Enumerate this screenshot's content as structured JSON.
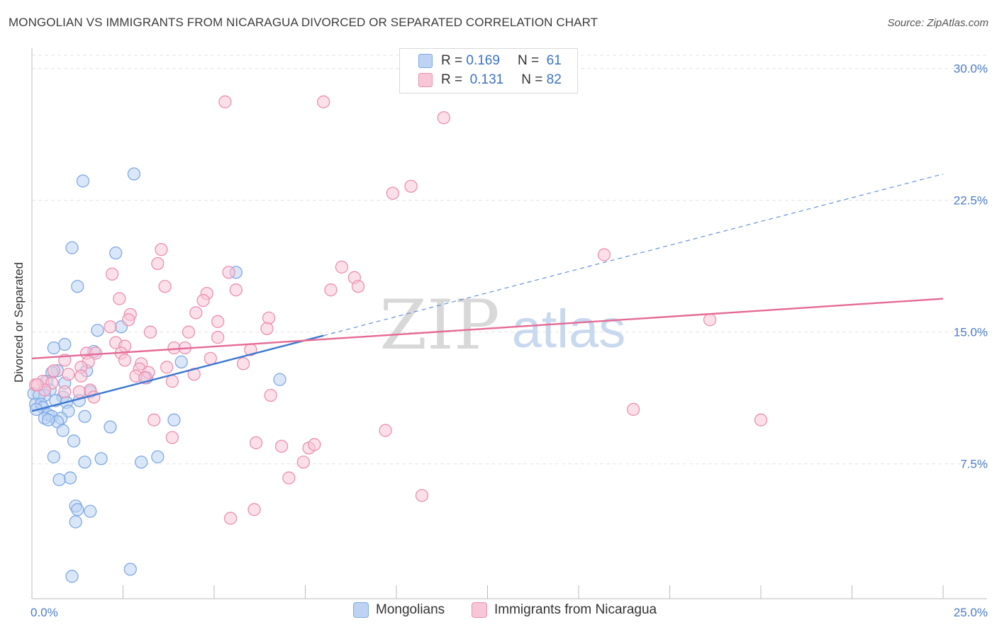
{
  "title": "MONGOLIAN VS IMMIGRANTS FROM NICARAGUA DIVORCED OR SEPARATED CORRELATION CHART",
  "source": "Source: ZipAtlas.com",
  "watermark": {
    "zip": "ZIP",
    "atlas": "atlas"
  },
  "legend": {
    "items": [
      {
        "r_label": "R =",
        "r_value": "0.169",
        "n_label": "N =",
        "n_value": "61",
        "color": "#7fa9e6",
        "fill": "#bcd3f3"
      },
      {
        "r_label": "R =",
        "r_value": "0.131",
        "n_label": "N =",
        "n_value": "82",
        "color": "#ec8fb0",
        "fill": "#f8c7d7"
      }
    ]
  },
  "bottom_legend": [
    "Mongolians",
    "Immigrants from Nicaragua"
  ],
  "chart_data": {
    "type": "scatter",
    "title": "MONGOLIAN VS IMMIGRANTS FROM NICARAGUA DIVORCED OR SEPARATED CORRELATION CHART",
    "xlabel": "",
    "ylabel": "Divorced or Separated",
    "xlim": [
      0,
      25
    ],
    "ylim": [
      0,
      30.5
    ],
    "x_ticks": [
      {
        "value": 0,
        "label": "0.0%"
      },
      {
        "value": 25,
        "label": "25.0%"
      }
    ],
    "y_ticks": [
      {
        "value": 7.5,
        "label": "7.5%"
      },
      {
        "value": 15,
        "label": "15.0%"
      },
      {
        "value": 22.5,
        "label": "22.5%"
      },
      {
        "value": 30,
        "label": "30.0%"
      }
    ],
    "grid": "horizontal dashed",
    "legend_placement": "top-center",
    "series": [
      {
        "name": "Mongolians",
        "color": "#3e78d0",
        "fill": "#bcd3f3",
        "stroke": "#7fa9e6",
        "points": [
          [
            1.4,
            23.6
          ],
          [
            2.8,
            24.0
          ],
          [
            1.1,
            19.8
          ],
          [
            2.3,
            19.5
          ],
          [
            1.25,
            17.6
          ],
          [
            5.6,
            18.4
          ],
          [
            1.8,
            15.1
          ],
          [
            2.45,
            15.3
          ],
          [
            0.9,
            14.3
          ],
          [
            0.6,
            14.1
          ],
          [
            1.7,
            13.9
          ],
          [
            4.1,
            13.3
          ],
          [
            1.5,
            12.8
          ],
          [
            0.7,
            12.8
          ],
          [
            0.55,
            12.7
          ],
          [
            3.15,
            12.4
          ],
          [
            6.8,
            12.3
          ],
          [
            0.4,
            12.2
          ],
          [
            0.9,
            12.1
          ],
          [
            0.5,
            11.7
          ],
          [
            0.05,
            11.5
          ],
          [
            1.6,
            11.6
          ],
          [
            0.35,
            11.4
          ],
          [
            0.85,
            11.3
          ],
          [
            0.2,
            11.4
          ],
          [
            0.65,
            11.1
          ],
          [
            1.3,
            11.1
          ],
          [
            0.1,
            10.9
          ],
          [
            0.95,
            11.0
          ],
          [
            0.25,
            10.9
          ],
          [
            0.3,
            10.7
          ],
          [
            0.12,
            10.6
          ],
          [
            1.0,
            10.5
          ],
          [
            0.45,
            10.3
          ],
          [
            0.55,
            10.2
          ],
          [
            0.8,
            10.1
          ],
          [
            0.35,
            10.1
          ],
          [
            0.7,
            9.9
          ],
          [
            1.45,
            10.2
          ],
          [
            0.45,
            10.0
          ],
          [
            2.15,
            9.6
          ],
          [
            0.85,
            9.4
          ],
          [
            3.9,
            10.0
          ],
          [
            1.15,
            8.8
          ],
          [
            0.6,
            7.9
          ],
          [
            1.9,
            7.8
          ],
          [
            3.45,
            7.9
          ],
          [
            1.45,
            7.6
          ],
          [
            3.0,
            7.6
          ],
          [
            1.05,
            6.7
          ],
          [
            0.75,
            6.6
          ],
          [
            1.2,
            5.1
          ],
          [
            1.25,
            4.9
          ],
          [
            1.6,
            4.8
          ],
          [
            1.2,
            4.2
          ],
          [
            2.7,
            1.5
          ],
          [
            1.1,
            1.1
          ]
        ]
      },
      {
        "name": "Immigrants from Nicaragua",
        "color": "#e56a95",
        "fill": "#f8c7d7",
        "stroke": "#ec8fb0",
        "points": [
          [
            5.3,
            28.1
          ],
          [
            8.0,
            28.1
          ],
          [
            11.3,
            27.2
          ],
          [
            10.4,
            23.3
          ],
          [
            9.9,
            22.9
          ],
          [
            15.7,
            19.4
          ],
          [
            3.55,
            19.7
          ],
          [
            3.45,
            18.9
          ],
          [
            8.5,
            18.7
          ],
          [
            5.4,
            18.4
          ],
          [
            2.2,
            18.3
          ],
          [
            8.85,
            18.1
          ],
          [
            3.65,
            17.6
          ],
          [
            8.95,
            17.6
          ],
          [
            8.2,
            17.4
          ],
          [
            5.6,
            17.4
          ],
          [
            4.8,
            17.2
          ],
          [
            4.7,
            16.8
          ],
          [
            2.4,
            16.9
          ],
          [
            4.5,
            16.1
          ],
          [
            2.7,
            16.0
          ],
          [
            6.5,
            15.8
          ],
          [
            2.65,
            15.7
          ],
          [
            5.1,
            15.6
          ],
          [
            18.6,
            15.7
          ],
          [
            2.15,
            15.3
          ],
          [
            6.45,
            15.2
          ],
          [
            3.25,
            15.0
          ],
          [
            4.3,
            15.0
          ],
          [
            5.1,
            14.7
          ],
          [
            2.3,
            14.4
          ],
          [
            2.55,
            14.2
          ],
          [
            3.9,
            14.1
          ],
          [
            4.2,
            14.1
          ],
          [
            1.5,
            13.8
          ],
          [
            1.75,
            13.8
          ],
          [
            2.45,
            13.8
          ],
          [
            6.0,
            14.0
          ],
          [
            0.9,
            13.4
          ],
          [
            1.55,
            13.3
          ],
          [
            2.55,
            13.4
          ],
          [
            4.9,
            13.5
          ],
          [
            1.35,
            13.0
          ],
          [
            3.0,
            13.2
          ],
          [
            5.8,
            13.2
          ],
          [
            3.7,
            13.0
          ],
          [
            2.95,
            12.9
          ],
          [
            0.6,
            12.8
          ],
          [
            1.0,
            12.6
          ],
          [
            3.2,
            12.7
          ],
          [
            4.45,
            12.6
          ],
          [
            1.35,
            12.5
          ],
          [
            2.85,
            12.5
          ],
          [
            3.1,
            12.4
          ],
          [
            3.85,
            12.2
          ],
          [
            0.3,
            12.2
          ],
          [
            0.55,
            12.1
          ],
          [
            0.1,
            12.0
          ],
          [
            0.35,
            11.7
          ],
          [
            1.6,
            11.7
          ],
          [
            1.3,
            11.6
          ],
          [
            0.9,
            11.6
          ],
          [
            6.55,
            11.4
          ],
          [
            1.7,
            11.3
          ],
          [
            0.15,
            12.0
          ],
          [
            16.5,
            10.6
          ],
          [
            20.0,
            10.0
          ],
          [
            3.35,
            10.0
          ],
          [
            9.7,
            9.4
          ],
          [
            3.85,
            9.0
          ],
          [
            6.15,
            8.7
          ],
          [
            7.6,
            8.4
          ],
          [
            7.75,
            8.6
          ],
          [
            6.85,
            8.5
          ],
          [
            7.45,
            7.6
          ],
          [
            7.05,
            6.7
          ],
          [
            10.7,
            5.7
          ],
          [
            6.1,
            4.9
          ],
          [
            5.45,
            4.4
          ]
        ]
      }
    ],
    "trendlines": [
      {
        "series": "Mongolians",
        "solid": {
          "x0": 0.0,
          "y0": 10.5,
          "x1": 8.0,
          "y1": 14.8
        },
        "dashed_to": {
          "x": 25.0,
          "y": 24.0
        }
      },
      {
        "series": "Immigrants from Nicaragua",
        "solid": {
          "x0": 0.0,
          "y0": 13.5,
          "x1": 25.0,
          "y1": 16.9
        }
      }
    ]
  }
}
